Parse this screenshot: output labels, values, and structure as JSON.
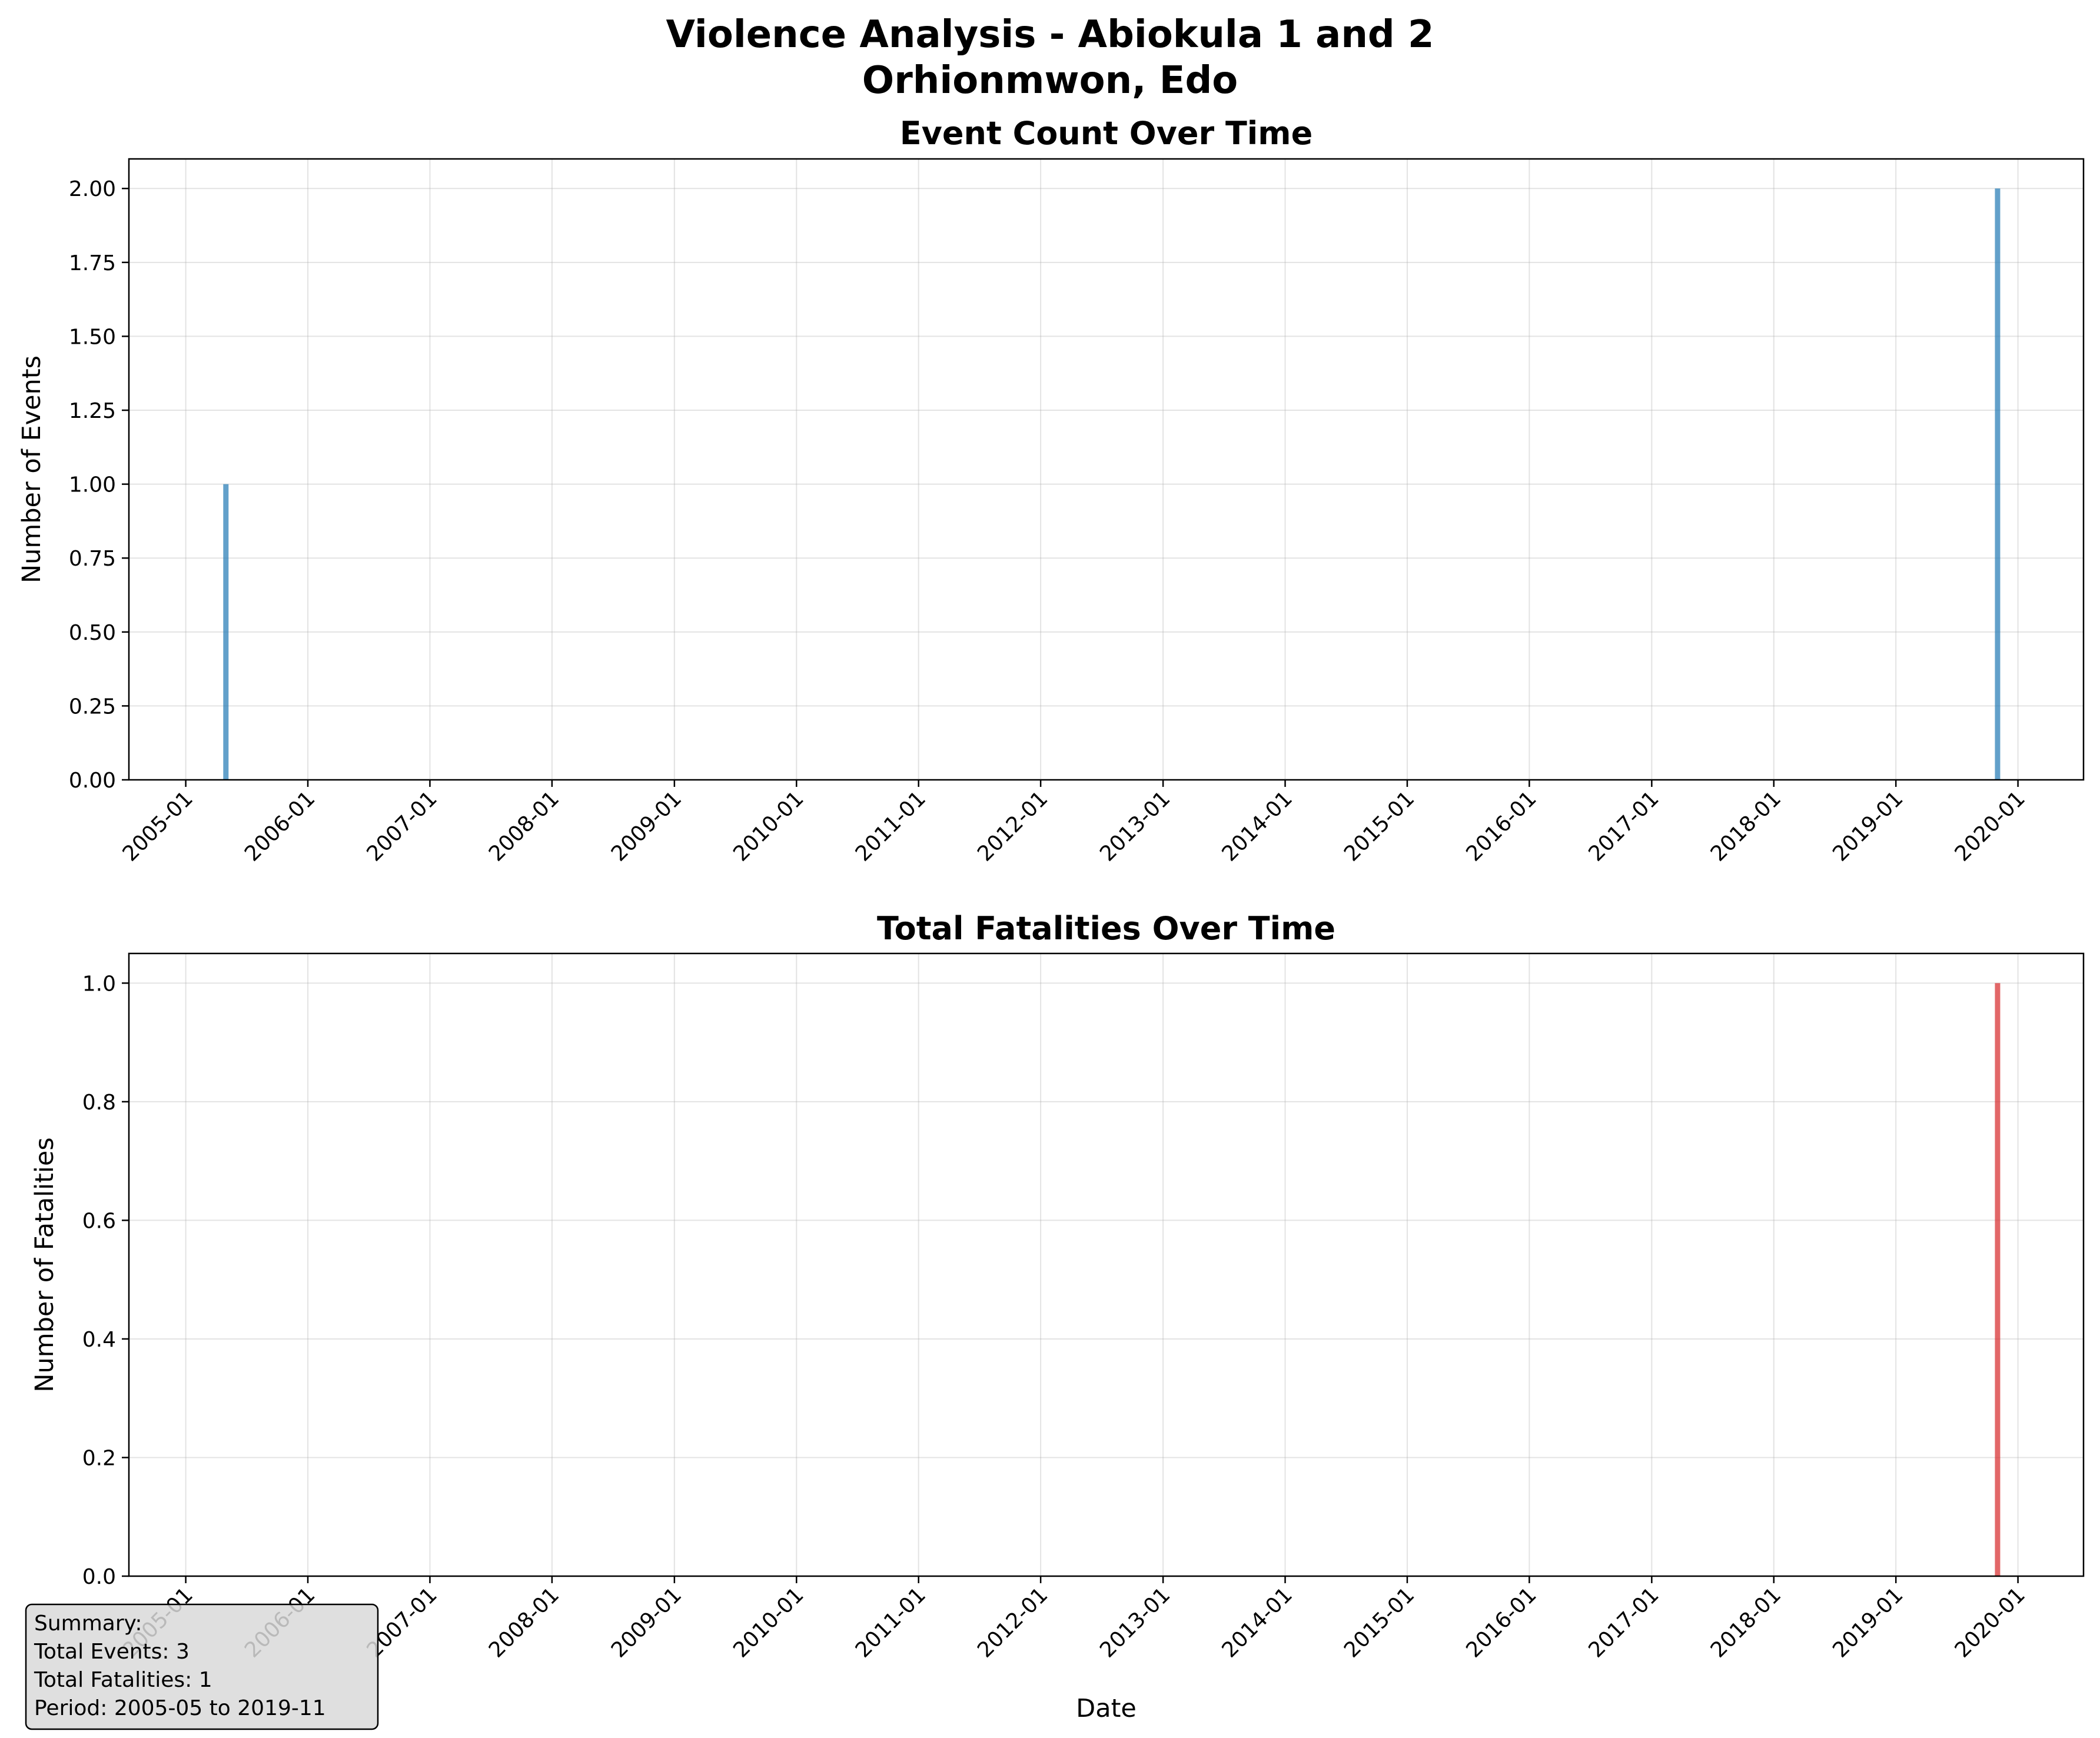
{
  "figure": {
    "title_line1": "Violence Analysis - Abiokula 1 and 2",
    "title_line2": "Orhionmwon, Edo"
  },
  "summary": {
    "line1": "Summary:",
    "line2": "Total Events: 3",
    "line3": "Total Fatalities: 1",
    "line4": "Period: 2005-05 to 2019-11",
    "box_color": "#d9d9d9"
  },
  "chart_data": [
    {
      "type": "bar",
      "title": "Event Count Over Time",
      "xlabel": "",
      "ylabel": "Number of Events",
      "color": "#1f77b4",
      "xlim": [
        "2004-07-15",
        "2020-07-15"
      ],
      "ylim": [
        0,
        2.1
      ],
      "x_ticks": [
        "2005-01",
        "2006-01",
        "2007-01",
        "2008-01",
        "2009-01",
        "2010-01",
        "2011-01",
        "2012-01",
        "2013-01",
        "2014-01",
        "2015-01",
        "2016-01",
        "2017-01",
        "2018-01",
        "2019-01",
        "2020-01"
      ],
      "y_ticks": [
        "0.00",
        "0.25",
        "0.50",
        "0.75",
        "1.00",
        "1.25",
        "1.50",
        "1.75",
        "2.00"
      ],
      "grid": true,
      "x": [
        "2005-05-01",
        "2019-11-01"
      ],
      "values": [
        1,
        2
      ]
    },
    {
      "type": "bar",
      "title": "Total Fatalities Over Time",
      "xlabel": "Date",
      "ylabel": "Number of Fatalities",
      "color": "#d62728",
      "xlim": [
        "2004-07-15",
        "2020-07-15"
      ],
      "ylim": [
        0,
        1.05
      ],
      "x_ticks": [
        "2005-01",
        "2006-01",
        "2007-01",
        "2008-01",
        "2009-01",
        "2010-01",
        "2011-01",
        "2012-01",
        "2013-01",
        "2014-01",
        "2015-01",
        "2016-01",
        "2017-01",
        "2018-01",
        "2019-01",
        "2020-01"
      ],
      "y_ticks": [
        "0.0",
        "0.2",
        "0.4",
        "0.6",
        "0.8",
        "1.0"
      ],
      "grid": true,
      "x": [
        "2019-11-01"
      ],
      "values": [
        1
      ]
    }
  ]
}
